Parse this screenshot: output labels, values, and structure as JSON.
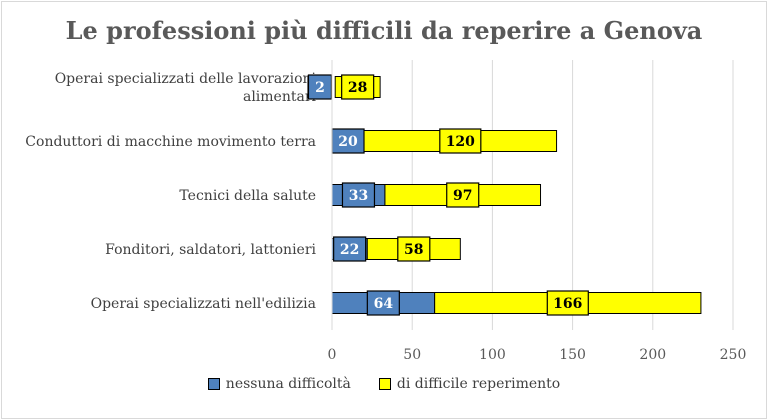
{
  "chart_data": {
    "type": "bar",
    "orientation": "horizontal",
    "stacked": true,
    "title": "Le professioni più difficili da reperire a Genova",
    "categories": [
      "Operai specializzati delle lavorazioni alimentari",
      "Conduttori di macchine movimento terra",
      "Tecnici della salute",
      "Fonditori, saldatori, lattonieri",
      "Operai specializzati nell'edilizia"
    ],
    "category_lines": [
      [
        "Operai specializzati delle lavorazioni",
        "alimentari"
      ],
      [
        "Conduttori di macchine movimento terra"
      ],
      [
        "Tecnici della salute"
      ],
      [
        "Fonditori, saldatori, lattonieri"
      ],
      [
        "Operai specializzati nell'edilizia"
      ]
    ],
    "series": [
      {
        "name": "nessuna difficoltà",
        "color": "#4f81bd",
        "values": [
          2,
          20,
          33,
          22,
          64
        ]
      },
      {
        "name": "di difficile reperimento",
        "color": "#ffff00",
        "values": [
          28,
          120,
          97,
          58,
          166
        ]
      }
    ],
    "xlim": [
      0,
      250
    ],
    "xticks": [
      0,
      50,
      100,
      150,
      200,
      250
    ],
    "grid": "vertical",
    "legend_position": "bottom"
  }
}
